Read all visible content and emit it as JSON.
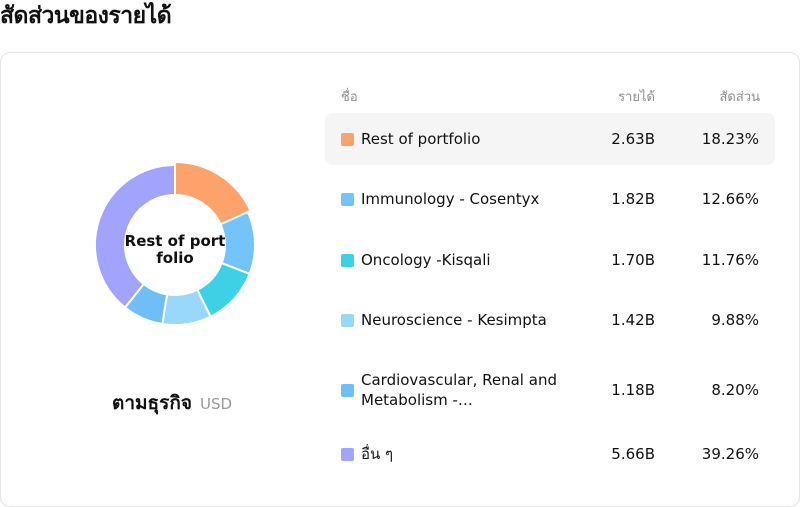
{
  "page": {
    "title": "สัดส่วนของรายได้"
  },
  "summary": {
    "center_label": "Rest of portfolio",
    "group_label": "ตามธุรกิจ",
    "currency": "USD"
  },
  "table": {
    "headers": {
      "name": "ชื่อ",
      "revenue": "รายได้",
      "share": "สัดส่วน"
    }
  },
  "chart_data": {
    "type": "pie",
    "title": "",
    "categories": [
      "Rest of portfolio",
      "Immunology - Cosentyx",
      "Oncology -Kisqali",
      "Neuroscience - Kesimpta",
      "Cardiovascular, Renal and Metabolism -…",
      "อื่น ๆ"
    ],
    "revenue_labels": [
      "2.63B",
      "1.82B",
      "1.70B",
      "1.42B",
      "1.18B",
      "5.66B"
    ],
    "values": [
      18.23,
      12.66,
      11.76,
      9.88,
      8.2,
      39.26
    ],
    "share_labels": [
      "18.23%",
      "12.66%",
      "11.76%",
      "9.88%",
      "8.20%",
      "39.26%"
    ],
    "colors": [
      "#FDA26B",
      "#74C3FA",
      "#3DD1E6",
      "#99D8FB",
      "#6FBEF7",
      "#A1A3FC"
    ],
    "highlighted_index": 0
  }
}
